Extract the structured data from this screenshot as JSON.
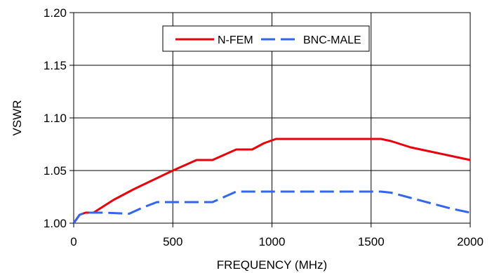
{
  "chart_data": {
    "type": "line",
    "xlabel": "FREQUENCY (MHz)",
    "ylabel": "VSWR",
    "xlim": [
      0,
      2000
    ],
    "ylim": [
      1.0,
      1.2
    ],
    "xticks": [
      0,
      500,
      1000,
      1500,
      2000
    ],
    "yticks": [
      1.0,
      1.05,
      1.1,
      1.15,
      1.2
    ],
    "xtick_labels": [
      "0",
      "500",
      "1000",
      "1500",
      "2000"
    ],
    "ytick_labels": [
      "1.00",
      "1.05",
      "1.10",
      "1.15",
      "1.20"
    ],
    "grid": true,
    "legend_position": "top-center",
    "series": [
      {
        "name": "N-FEM",
        "color": "#e8000b",
        "dash": "solid",
        "points": [
          [
            0,
            1.0
          ],
          [
            30,
            1.008
          ],
          [
            60,
            1.01
          ],
          [
            100,
            1.01
          ],
          [
            200,
            1.022
          ],
          [
            300,
            1.032
          ],
          [
            400,
            1.041
          ],
          [
            500,
            1.05
          ],
          [
            560,
            1.055
          ],
          [
            620,
            1.06
          ],
          [
            700,
            1.06
          ],
          [
            760,
            1.065
          ],
          [
            820,
            1.07
          ],
          [
            900,
            1.07
          ],
          [
            960,
            1.076
          ],
          [
            1020,
            1.08
          ],
          [
            1100,
            1.08
          ],
          [
            1200,
            1.08
          ],
          [
            1300,
            1.08
          ],
          [
            1400,
            1.08
          ],
          [
            1500,
            1.08
          ],
          [
            1550,
            1.08
          ],
          [
            1600,
            1.078
          ],
          [
            1700,
            1.072
          ],
          [
            1800,
            1.068
          ],
          [
            1900,
            1.064
          ],
          [
            2000,
            1.06
          ]
        ]
      },
      {
        "name": "BNC-MALE",
        "color": "#3366ee",
        "dash": "dashed",
        "points": [
          [
            0,
            1.0
          ],
          [
            30,
            1.008
          ],
          [
            60,
            1.01
          ],
          [
            150,
            1.01
          ],
          [
            280,
            1.009
          ],
          [
            350,
            1.015
          ],
          [
            420,
            1.02
          ],
          [
            500,
            1.02
          ],
          [
            600,
            1.02
          ],
          [
            700,
            1.02
          ],
          [
            760,
            1.025
          ],
          [
            820,
            1.03
          ],
          [
            900,
            1.03
          ],
          [
            1000,
            1.03
          ],
          [
            1100,
            1.03
          ],
          [
            1200,
            1.03
          ],
          [
            1300,
            1.03
          ],
          [
            1400,
            1.03
          ],
          [
            1500,
            1.03
          ],
          [
            1550,
            1.03
          ],
          [
            1600,
            1.029
          ],
          [
            1700,
            1.024
          ],
          [
            1800,
            1.019
          ],
          [
            1900,
            1.014
          ],
          [
            2000,
            1.01
          ]
        ]
      }
    ]
  }
}
